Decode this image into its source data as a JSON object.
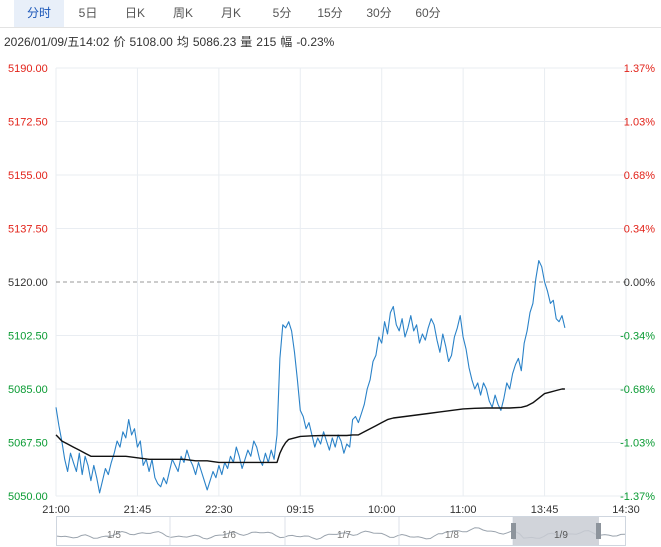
{
  "tabs": [
    {
      "label": "分时",
      "active": true
    },
    {
      "label": "5日",
      "active": false
    },
    {
      "label": "日K",
      "active": false
    },
    {
      "label": "周K",
      "active": false
    },
    {
      "label": "月K",
      "active": false
    },
    {
      "label": "5分",
      "active": false
    },
    {
      "label": "15分",
      "active": false
    },
    {
      "label": "30分",
      "active": false
    },
    {
      "label": "60分",
      "active": false
    }
  ],
  "info": {
    "datetime": "2026/01/09/五14:02",
    "price_label": "价",
    "price": "5108.00",
    "avg_label": "均",
    "avg": "5086.23",
    "vol_label": "量",
    "vol": "215",
    "chg_label": "幅",
    "chg": "-0.23%"
  },
  "colors": {
    "up": "#e2231a",
    "down": "#0a9b33",
    "neutral": "#333333",
    "price_line": "#2a82c8",
    "avg_line": "#111111",
    "grid": "#e9edf2",
    "ref_line": "#999999"
  },
  "chart_data": {
    "type": "line",
    "ylim": [
      5050,
      5190
    ],
    "reference_price": 5120,
    "y_ticks": [
      "5190.00",
      "5172.50",
      "5155.00",
      "5137.50",
      "5120.00",
      "5102.50",
      "5085.00",
      "5067.50",
      "5050.00"
    ],
    "pct_ticks": [
      "1.37%",
      "1.03%",
      "0.68%",
      "0.34%",
      "0.00%",
      "-0.34%",
      "-0.68%",
      "-1.03%",
      "-1.37%"
    ],
    "x_ticks": [
      "21:00",
      "21:45",
      "22:30",
      "09:15",
      "10:00",
      "11:00",
      "13:45",
      "14:30"
    ],
    "x_range": [
      0,
      98
    ],
    "series": [
      {
        "values": [
          [
            0,
            5079
          ],
          [
            0.5,
            5073
          ],
          [
            1,
            5068
          ],
          [
            1.5,
            5062
          ],
          [
            2,
            5058
          ],
          [
            2.5,
            5064
          ],
          [
            3,
            5061
          ],
          [
            3.5,
            5058
          ],
          [
            4,
            5064
          ],
          [
            4.5,
            5057
          ],
          [
            5,
            5063
          ],
          [
            5.5,
            5060
          ],
          [
            6,
            5055
          ],
          [
            6.5,
            5060
          ],
          [
            7,
            5056
          ],
          [
            7.5,
            5051
          ],
          [
            8,
            5055
          ],
          [
            8.5,
            5059
          ],
          [
            9,
            5057
          ],
          [
            9.5,
            5061
          ],
          [
            10,
            5064
          ],
          [
            10.5,
            5068
          ],
          [
            11,
            5066
          ],
          [
            11.5,
            5071
          ],
          [
            12,
            5069
          ],
          [
            12.5,
            5075
          ],
          [
            13,
            5070
          ],
          [
            13.5,
            5072
          ],
          [
            14,
            5066
          ],
          [
            14.5,
            5068
          ],
          [
            15,
            5060
          ],
          [
            15.5,
            5062
          ],
          [
            16,
            5058
          ],
          [
            16.5,
            5062
          ],
          [
            17,
            5056
          ],
          [
            17.5,
            5054
          ],
          [
            18,
            5053
          ],
          [
            18.5,
            5056
          ],
          [
            19,
            5054
          ],
          [
            19.5,
            5058
          ],
          [
            20,
            5062
          ],
          [
            20.5,
            5060
          ],
          [
            21,
            5058
          ],
          [
            21.5,
            5063
          ],
          [
            22,
            5061
          ],
          [
            22.5,
            5065
          ],
          [
            23,
            5062
          ],
          [
            23.5,
            5060
          ],
          [
            24,
            5057
          ],
          [
            24.5,
            5061
          ],
          [
            25,
            5058
          ],
          [
            25.5,
            5055
          ],
          [
            26,
            5052
          ],
          [
            26.5,
            5055
          ],
          [
            27,
            5058
          ],
          [
            27.5,
            5056
          ],
          [
            28,
            5060
          ],
          [
            28.5,
            5057
          ],
          [
            29,
            5061
          ],
          [
            29.5,
            5059
          ],
          [
            30,
            5063
          ],
          [
            30.5,
            5061
          ],
          [
            31,
            5066
          ],
          [
            31.5,
            5063
          ],
          [
            32,
            5059
          ],
          [
            32.5,
            5062
          ],
          [
            33,
            5065
          ],
          [
            33.5,
            5063
          ],
          [
            34,
            5068
          ],
          [
            34.5,
            5066
          ],
          [
            35,
            5062
          ],
          [
            35.5,
            5060
          ],
          [
            36,
            5064
          ],
          [
            36.5,
            5061
          ],
          [
            37,
            5065
          ],
          [
            37.5,
            5062
          ],
          [
            38,
            5070
          ],
          [
            38.5,
            5095
          ],
          [
            39,
            5106
          ],
          [
            39.5,
            5105
          ],
          [
            40,
            5107
          ],
          [
            40.5,
            5104
          ],
          [
            41,
            5097
          ],
          [
            41.5,
            5088
          ],
          [
            42,
            5078
          ],
          [
            42.5,
            5076
          ],
          [
            43,
            5072
          ],
          [
            43.5,
            5074
          ],
          [
            44,
            5070
          ],
          [
            44.5,
            5066
          ],
          [
            45,
            5069
          ],
          [
            45.5,
            5067
          ],
          [
            46,
            5071
          ],
          [
            46.5,
            5068
          ],
          [
            47,
            5065
          ],
          [
            47.5,
            5069
          ],
          [
            48,
            5066
          ],
          [
            48.5,
            5070
          ],
          [
            49,
            5068
          ],
          [
            49.5,
            5064
          ],
          [
            50,
            5067
          ],
          [
            50.5,
            5066
          ],
          [
            51,
            5075
          ],
          [
            51.5,
            5076
          ],
          [
            52,
            5074
          ],
          [
            52.5,
            5077
          ],
          [
            53,
            5080
          ],
          [
            53.5,
            5085
          ],
          [
            54,
            5088
          ],
          [
            54.5,
            5094
          ],
          [
            55,
            5096
          ],
          [
            55.5,
            5102
          ],
          [
            56,
            5100
          ],
          [
            56.5,
            5107
          ],
          [
            57,
            5103
          ],
          [
            57.5,
            5110
          ],
          [
            58,
            5112
          ],
          [
            58.5,
            5106
          ],
          [
            59,
            5104
          ],
          [
            59.5,
            5108
          ],
          [
            60,
            5102
          ],
          [
            60.5,
            5105
          ],
          [
            61,
            5109
          ],
          [
            61.5,
            5104
          ],
          [
            62,
            5106
          ],
          [
            62.5,
            5100
          ],
          [
            63,
            5103
          ],
          [
            63.5,
            5101
          ],
          [
            64,
            5105
          ],
          [
            64.5,
            5108
          ],
          [
            65,
            5106
          ],
          [
            65.5,
            5101
          ],
          [
            66,
            5097
          ],
          [
            66.5,
            5103
          ],
          [
            67,
            5099
          ],
          [
            67.5,
            5094
          ],
          [
            68,
            5096
          ],
          [
            68.5,
            5102
          ],
          [
            69,
            5105
          ],
          [
            69.5,
            5109
          ],
          [
            70,
            5102
          ],
          [
            70.5,
            5098
          ],
          [
            71,
            5092
          ],
          [
            71.5,
            5088
          ],
          [
            72,
            5085
          ],
          [
            72.5,
            5087
          ],
          [
            73,
            5083
          ],
          [
            73.5,
            5087
          ],
          [
            74,
            5085
          ],
          [
            74.5,
            5081
          ],
          [
            75,
            5079
          ],
          [
            75.5,
            5083
          ],
          [
            76,
            5080
          ],
          [
            76.5,
            5078
          ],
          [
            77,
            5082
          ],
          [
            77.5,
            5087
          ],
          [
            78,
            5085
          ],
          [
            78.5,
            5090
          ],
          [
            79,
            5093
          ],
          [
            79.5,
            5095
          ],
          [
            80,
            5091
          ],
          [
            80.5,
            5100
          ],
          [
            81,
            5104
          ],
          [
            81.5,
            5110
          ],
          [
            82,
            5113
          ],
          [
            82.5,
            5121
          ],
          [
            83,
            5127
          ],
          [
            83.5,
            5125
          ],
          [
            84,
            5120
          ],
          [
            84.5,
            5117
          ],
          [
            85,
            5113
          ],
          [
            85.5,
            5114
          ],
          [
            86,
            5108
          ],
          [
            86.5,
            5107
          ],
          [
            87,
            5109
          ],
          [
            87.5,
            5105
          ]
        ]
      },
      {
        "values": [
          [
            0,
            5070
          ],
          [
            0.5,
            5069
          ],
          [
            1,
            5068
          ],
          [
            2,
            5067
          ],
          [
            3,
            5066
          ],
          [
            4,
            5065
          ],
          [
            5,
            5064
          ],
          [
            6,
            5063
          ],
          [
            8,
            5063
          ],
          [
            10,
            5063
          ],
          [
            12,
            5063
          ],
          [
            14,
            5062.5
          ],
          [
            16,
            5062
          ],
          [
            18,
            5062
          ],
          [
            20,
            5062
          ],
          [
            22,
            5062
          ],
          [
            24,
            5061.5
          ],
          [
            26,
            5061.5
          ],
          [
            28,
            5061
          ],
          [
            30,
            5061
          ],
          [
            32,
            5061
          ],
          [
            34,
            5061
          ],
          [
            36,
            5061
          ],
          [
            38,
            5061
          ],
          [
            38.5,
            5064
          ],
          [
            39,
            5066
          ],
          [
            39.5,
            5067.5
          ],
          [
            40,
            5068.5
          ],
          [
            41,
            5069
          ],
          [
            42,
            5069.5
          ],
          [
            44,
            5069.7
          ],
          [
            46,
            5069.8
          ],
          [
            48,
            5069.8
          ],
          [
            50,
            5069.8
          ],
          [
            51,
            5070
          ],
          [
            52,
            5070
          ],
          [
            53,
            5071
          ],
          [
            54,
            5072
          ],
          [
            55,
            5073
          ],
          [
            56,
            5074
          ],
          [
            57,
            5075
          ],
          [
            58,
            5075.5
          ],
          [
            60,
            5076
          ],
          [
            62,
            5076.5
          ],
          [
            64,
            5077
          ],
          [
            66,
            5077.5
          ],
          [
            68,
            5078
          ],
          [
            70,
            5078.5
          ],
          [
            72,
            5078.7
          ],
          [
            74,
            5078.8
          ],
          [
            76,
            5078.8
          ],
          [
            78,
            5078.8
          ],
          [
            80,
            5079
          ],
          [
            81,
            5079.5
          ],
          [
            82,
            5080.5
          ],
          [
            83,
            5082
          ],
          [
            84,
            5083.5
          ],
          [
            85,
            5084
          ],
          [
            86,
            5084.5
          ],
          [
            87,
            5085
          ],
          [
            87.5,
            5085
          ]
        ]
      }
    ]
  },
  "navigator": {
    "dates": [
      "1/5",
      "1/6",
      "1/7",
      "1/8",
      "1/9"
    ]
  }
}
